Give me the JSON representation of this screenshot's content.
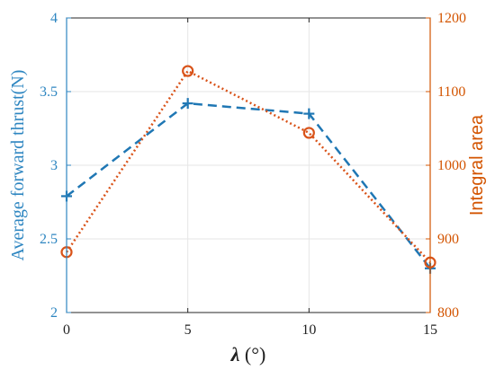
{
  "chart_data": {
    "type": "line",
    "x": [
      0,
      5,
      10,
      15
    ],
    "xlim": [
      0,
      15
    ],
    "xticks": [
      "0",
      "5",
      "10",
      "15"
    ],
    "xlabel_symbol": "λ",
    "xlabel_unit": " (°)",
    "grid": true,
    "axes": {
      "left": {
        "label": "Average forward thrust(N)",
        "ylim": [
          2,
          4
        ],
        "ticks": [
          "2",
          "2.5",
          "3",
          "3.5",
          "4"
        ],
        "color": "#2E86C1"
      },
      "right": {
        "label": "Integral area",
        "ylim": [
          800,
          1200
        ],
        "ticks": [
          "800",
          "900",
          "1000",
          "1100",
          "1200"
        ],
        "color": "#D35400"
      }
    },
    "series": [
      {
        "axis": "left",
        "values": [
          2.79,
          3.42,
          3.35,
          2.3
        ],
        "line_style": "dashed",
        "marker": "plus",
        "color": "#1F77B4"
      },
      {
        "axis": "right",
        "values": [
          882,
          1128,
          1044,
          868
        ],
        "line_style": "dotted",
        "marker": "circle",
        "color": "#D95319"
      }
    ]
  }
}
